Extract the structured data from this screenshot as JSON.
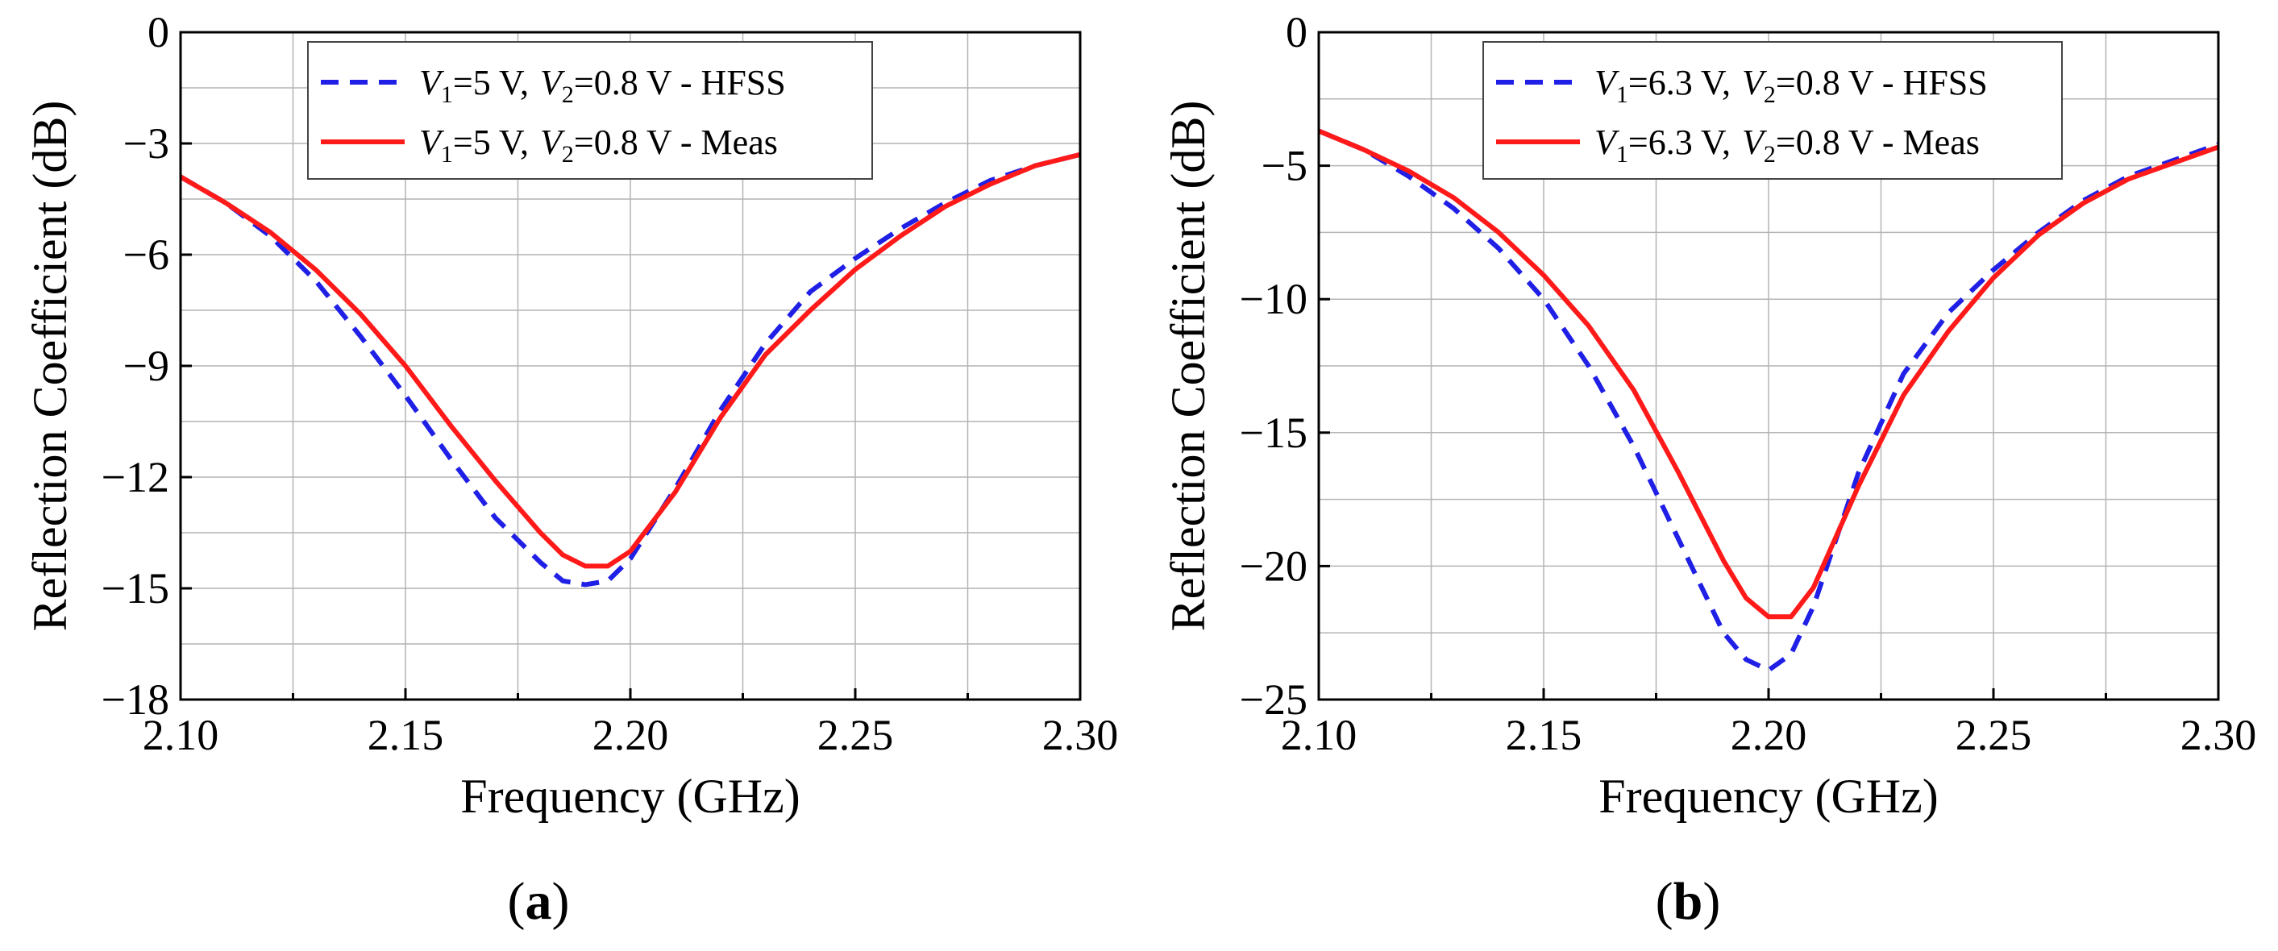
{
  "chart_data": [
    {
      "type": "line",
      "panel_label": "a",
      "xlabel": "Frequency (GHz)",
      "ylabel": "Reflection Coefficient (dB)",
      "xlim": [
        2.1,
        2.3
      ],
      "ylim": [
        -18,
        0
      ],
      "xticks": [
        2.1,
        2.15,
        2.2,
        2.25,
        2.3
      ],
      "xtick_labels": [
        "2.10",
        "2.15",
        "2.20",
        "2.25",
        "2.30"
      ],
      "yticks": [
        0,
        -3,
        -6,
        -9,
        -12,
        -15,
        -18
      ],
      "ytick_labels": [
        "0",
        "−3",
        "−6",
        "−9",
        "−12",
        "−15",
        "−18"
      ],
      "grid": true,
      "legend_position": "top-center",
      "series": [
        {
          "legend": {
            "v1_value": "=5 V,",
            "v2_value": "=0.8 V - HFSS"
          },
          "color": "#1f1fe6",
          "style": "dashed",
          "x": [
            2.1,
            2.11,
            2.12,
            2.13,
            2.14,
            2.15,
            2.16,
            2.17,
            2.18,
            2.185,
            2.19,
            2.195,
            2.2,
            2.21,
            2.22,
            2.23,
            2.24,
            2.25,
            2.26,
            2.27,
            2.28,
            2.29,
            2.3
          ],
          "y": [
            -3.9,
            -4.6,
            -5.5,
            -6.7,
            -8.2,
            -9.8,
            -11.5,
            -13.1,
            -14.3,
            -14.8,
            -14.9,
            -14.8,
            -14.2,
            -12.3,
            -10.2,
            -8.4,
            -7.0,
            -6.1,
            -5.3,
            -4.6,
            -4.0,
            -3.6,
            -3.3
          ]
        },
        {
          "legend": {
            "v1_value": "=5 V,",
            "v2_value": "=0.8 V - Meas"
          },
          "color": "#ff1a1a",
          "style": "solid",
          "x": [
            2.1,
            2.11,
            2.12,
            2.13,
            2.14,
            2.15,
            2.16,
            2.17,
            2.18,
            2.185,
            2.19,
            2.195,
            2.2,
            2.21,
            2.22,
            2.23,
            2.24,
            2.25,
            2.26,
            2.27,
            2.28,
            2.29,
            2.3
          ],
          "y": [
            -3.9,
            -4.6,
            -5.4,
            -6.4,
            -7.6,
            -9.0,
            -10.6,
            -12.1,
            -13.5,
            -14.1,
            -14.4,
            -14.4,
            -14.0,
            -12.4,
            -10.4,
            -8.7,
            -7.5,
            -6.4,
            -5.5,
            -4.7,
            -4.1,
            -3.6,
            -3.3
          ]
        }
      ]
    },
    {
      "type": "line",
      "panel_label": "b",
      "xlabel": "Frequency (GHz)",
      "ylabel": "Reflection Coefficient (dB)",
      "xlim": [
        2.1,
        2.3
      ],
      "ylim": [
        -25,
        0
      ],
      "xticks": [
        2.1,
        2.15,
        2.2,
        2.25,
        2.3
      ],
      "xtick_labels": [
        "2.10",
        "2.15",
        "2.20",
        "2.25",
        "2.30"
      ],
      "yticks": [
        0,
        -5,
        -10,
        -15,
        -20,
        -25
      ],
      "ytick_labels": [
        "0",
        "−5",
        "−10",
        "−15",
        "−20",
        "−25"
      ],
      "grid": true,
      "legend_position": "top-center",
      "series": [
        {
          "legend": {
            "v1_value": "=6.3 V,",
            "v2_value": "=0.8 V - HFSS"
          },
          "color": "#1f1fe6",
          "style": "dashed",
          "x": [
            2.1,
            2.11,
            2.12,
            2.13,
            2.14,
            2.15,
            2.16,
            2.17,
            2.18,
            2.19,
            2.195,
            2.2,
            2.205,
            2.21,
            2.22,
            2.23,
            2.24,
            2.25,
            2.26,
            2.27,
            2.28,
            2.29,
            2.3
          ],
          "y": [
            -3.7,
            -4.4,
            -5.4,
            -6.6,
            -8.1,
            -10.0,
            -12.5,
            -15.5,
            -19.0,
            -22.5,
            -23.5,
            -23.9,
            -23.3,
            -21.5,
            -16.5,
            -12.8,
            -10.5,
            -8.9,
            -7.5,
            -6.3,
            -5.4,
            -4.8,
            -4.2
          ]
        },
        {
          "legend": {
            "v1_value": "=6.3 V,",
            "v2_value": "=0.8 V - Meas"
          },
          "color": "#ff1a1a",
          "style": "solid",
          "x": [
            2.1,
            2.11,
            2.12,
            2.13,
            2.14,
            2.15,
            2.16,
            2.17,
            2.18,
            2.19,
            2.195,
            2.2,
            2.205,
            2.21,
            2.22,
            2.23,
            2.24,
            2.25,
            2.26,
            2.27,
            2.28,
            2.29,
            2.3
          ],
          "y": [
            -3.7,
            -4.4,
            -5.2,
            -6.2,
            -7.5,
            -9.1,
            -11.0,
            -13.4,
            -16.5,
            -19.8,
            -21.2,
            -21.9,
            -21.9,
            -20.8,
            -17.0,
            -13.6,
            -11.2,
            -9.2,
            -7.6,
            -6.4,
            -5.5,
            -4.9,
            -4.3
          ]
        }
      ]
    }
  ],
  "legend_symbols": {
    "v": "V",
    "sub1": "1",
    "sub2": "2"
  }
}
